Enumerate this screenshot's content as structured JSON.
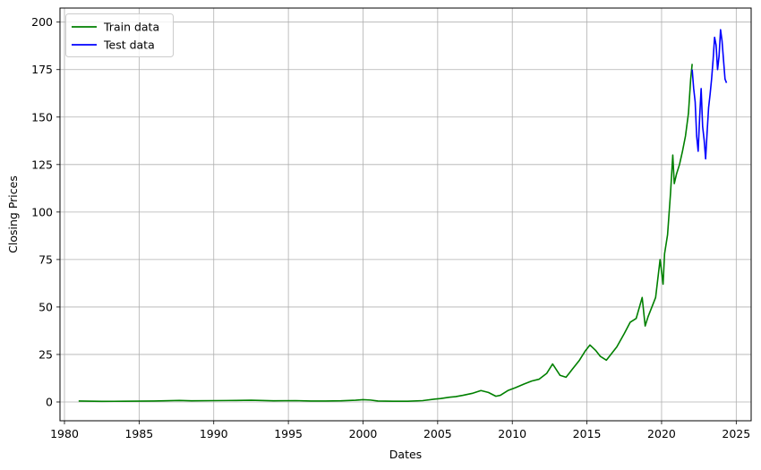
{
  "chart_data": {
    "type": "line",
    "xlabel": "Dates",
    "ylabel": "Closing Prices",
    "xlim": [
      1979.7,
      2026.0
    ],
    "ylim": [
      -9.9,
      207.4
    ],
    "xticks": [
      1980,
      1985,
      1990,
      1995,
      2000,
      2005,
      2010,
      2015,
      2020,
      2025
    ],
    "yticks": [
      0,
      25,
      50,
      75,
      100,
      125,
      150,
      175,
      200
    ],
    "grid": true,
    "legend_position": "top-left",
    "series": [
      {
        "name": "Train data",
        "color": "#008000",
        "x": [
          1980.95,
          1982.5,
          1984.0,
          1986.0,
          1987.7,
          1988.5,
          1990.0,
          1991.5,
          1992.5,
          1994.0,
          1995.5,
          1996.5,
          1997.5,
          1998.5,
          1999.5,
          2000.0,
          2000.5,
          2001.0,
          2002.0,
          2003.0,
          2004.0,
          2004.8,
          2005.2,
          2005.8,
          2006.2,
          2006.7,
          2007.3,
          2007.9,
          2008.4,
          2008.9,
          2009.2,
          2009.7,
          2010.2,
          2010.8,
          2011.3,
          2011.8,
          2012.3,
          2012.7,
          2013.2,
          2013.6,
          2014.0,
          2014.5,
          2014.9,
          2015.2,
          2015.6,
          2015.9,
          2016.3,
          2016.7,
          2017.0,
          2017.5,
          2017.9,
          2018.3,
          2018.7,
          2018.9,
          2019.1,
          2019.3,
          2019.6,
          2019.9,
          2020.1,
          2020.2,
          2020.4,
          2020.6,
          2020.75,
          2020.85,
          2021.0,
          2021.2,
          2021.4,
          2021.6,
          2021.8,
          2021.95,
          2022.05
        ],
        "y": [
          0.5,
          0.3,
          0.4,
          0.5,
          0.8,
          0.6,
          0.7,
          0.8,
          0.9,
          0.6,
          0.7,
          0.5,
          0.5,
          0.6,
          0.9,
          1.2,
          1.0,
          0.5,
          0.4,
          0.4,
          0.7,
          1.5,
          1.8,
          2.5,
          2.8,
          3.5,
          4.5,
          6.0,
          5.0,
          3.0,
          3.5,
          6.0,
          7.5,
          9.5,
          11.0,
          12.0,
          15.0,
          20.0,
          14.0,
          13.0,
          17.0,
          22.0,
          27.0,
          30.0,
          27.0,
          24.0,
          22.0,
          26.0,
          29.0,
          36.0,
          42.0,
          44.0,
          55.0,
          40.0,
          45.0,
          49.0,
          55.0,
          75.0,
          62.0,
          78.0,
          88.0,
          110.0,
          130.0,
          115.0,
          120.0,
          125.0,
          132.0,
          140.0,
          152.0,
          170.0,
          178.0
        ]
      },
      {
        "name": "Test data",
        "color": "#0000ff",
        "x": [
          2022.05,
          2022.15,
          2022.25,
          2022.35,
          2022.45,
          2022.55,
          2022.65,
          2022.75,
          2022.85,
          2022.95,
          2023.05,
          2023.15,
          2023.25,
          2023.35,
          2023.45,
          2023.55,
          2023.65,
          2023.75,
          2023.85,
          2023.95,
          2024.05,
          2024.15,
          2024.25,
          2024.35
        ],
        "y": [
          175.0,
          165.0,
          158.0,
          140.0,
          132.0,
          150.0,
          165.0,
          145.0,
          138.0,
          128.0,
          142.0,
          155.0,
          162.0,
          170.0,
          180.0,
          192.0,
          188.0,
          175.0,
          182.0,
          196.0,
          190.0,
          180.0,
          170.0,
          168.0
        ]
      }
    ]
  }
}
